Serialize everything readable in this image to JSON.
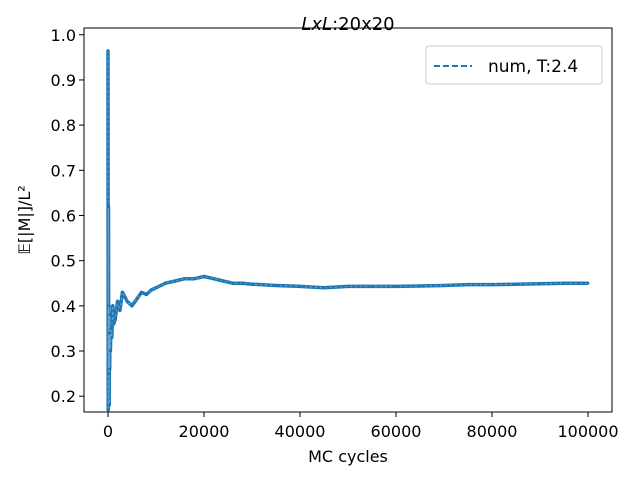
{
  "chart_data": {
    "type": "line",
    "title_italic": "LxL",
    "title_rest": ":20x20",
    "xlabel": "MC cycles",
    "ylabel": "𝔼[|M|]/L²",
    "xlim": [
      -5000,
      105000
    ],
    "ylim": [
      0.165,
      1.015
    ],
    "xticks": [
      0,
      20000,
      40000,
      60000,
      80000,
      100000
    ],
    "yticks": [
      0.2,
      0.3,
      0.4,
      0.5,
      0.6,
      0.7,
      0.8,
      0.9,
      1.0
    ],
    "ytick_labels": [
      "0.2",
      "0.3",
      "0.4",
      "0.5",
      "0.6",
      "0.7",
      "0.8",
      "0.9",
      "1.0"
    ],
    "grid": false,
    "legend_position": "top-right",
    "series": [
      {
        "name": "num, T:2.4",
        "color": "#1f77b4",
        "linestyle": "dashed",
        "x": [
          0,
          50,
          100,
          150,
          200,
          250,
          300,
          350,
          400,
          500,
          600,
          800,
          1000,
          1200,
          1500,
          2000,
          2500,
          3000,
          3500,
          4000,
          5000,
          6000,
          7000,
          8000,
          9000,
          10000,
          12000,
          14000,
          16000,
          18000,
          20000,
          22000,
          24000,
          26000,
          28000,
          30000,
          35000,
          40000,
          45000,
          50000,
          55000,
          60000,
          65000,
          70000,
          75000,
          80000,
          85000,
          90000,
          95000,
          100000
        ],
        "y": [
          0.965,
          0.17,
          0.62,
          0.25,
          0.4,
          0.18,
          0.34,
          0.26,
          0.38,
          0.3,
          0.35,
          0.33,
          0.4,
          0.36,
          0.37,
          0.41,
          0.39,
          0.43,
          0.42,
          0.41,
          0.4,
          0.415,
          0.43,
          0.425,
          0.435,
          0.44,
          0.45,
          0.455,
          0.46,
          0.46,
          0.465,
          0.46,
          0.455,
          0.45,
          0.45,
          0.448,
          0.445,
          0.443,
          0.44,
          0.443,
          0.443,
          0.443,
          0.444,
          0.445,
          0.447,
          0.447,
          0.448,
          0.449,
          0.45,
          0.45
        ]
      }
    ]
  }
}
